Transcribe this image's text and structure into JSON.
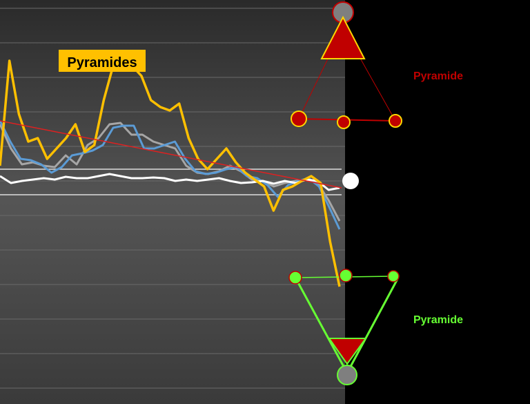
{
  "chart_data": {
    "type": "line",
    "title": "",
    "xlabel": "",
    "ylabel": "",
    "grid": true,
    "annotation_box": "Pyramides",
    "colors": {
      "background_panel": "#4a4a4a",
      "right_panel": "#000000",
      "yellow": "#FFC000",
      "blue": "#5B9BD5",
      "gray": "#A6A6A6",
      "white": "#FFFFFF",
      "trend": "#E02020",
      "red_pyramid": "#C00000",
      "green": "#66FF33"
    },
    "y_domain": [
      0,
      585
    ],
    "series": [
      {
        "key": "yellow",
        "values": [
          240,
          88,
          165,
          205,
          200,
          230,
          215,
          200,
          180,
          220,
          210,
          145,
          95,
          90,
          95,
          110,
          145,
          155,
          160,
          150,
          200,
          230,
          245,
          230,
          215,
          235,
          250,
          260,
          270,
          305,
          275,
          270,
          262,
          255,
          265,
          350,
          415
        ]
      },
      {
        "key": "blue",
        "values": [
          175,
          205,
          230,
          232,
          238,
          250,
          242,
          225,
          222,
          218,
          210,
          185,
          182,
          182,
          215,
          215,
          210,
          205,
          230,
          248,
          252,
          250,
          245,
          242,
          255,
          258,
          268,
          285,
          268,
          262,
          258,
          270,
          300,
          332
        ]
      },
      {
        "key": "gray",
        "values": [
          180,
          215,
          238,
          235,
          240,
          242,
          225,
          238,
          210,
          200,
          180,
          178,
          195,
          195,
          205,
          210,
          215,
          240,
          250,
          252,
          248,
          240,
          248,
          260,
          262,
          270,
          265,
          262,
          260,
          265,
          290,
          320
        ]
      },
      {
        "key": "white",
        "values": [
          255,
          265,
          262,
          260,
          258,
          260,
          256,
          258,
          258,
          255,
          252,
          255,
          258,
          258,
          257,
          258,
          262,
          260,
          262,
          260,
          258,
          262,
          265,
          264,
          262,
          266,
          262,
          265,
          260,
          262,
          275,
          272
        ]
      }
    ],
    "trendline": {
      "from": [
        0,
        175
      ],
      "to": [
        495,
        272
      ]
    },
    "band_lines": [
      245,
      282
    ]
  },
  "annotations": {
    "pyramid_top": "Pyramide",
    "pyramid_bottom": "Pyramide"
  }
}
